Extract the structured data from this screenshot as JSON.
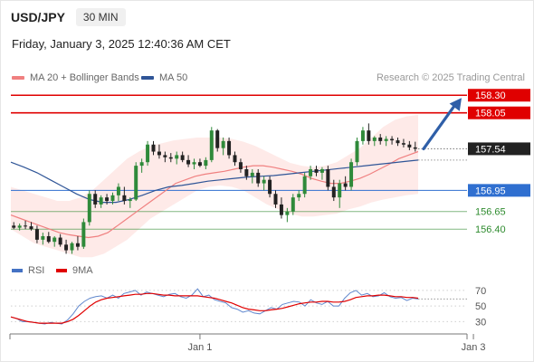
{
  "header": {
    "symbol": "USD/JPY",
    "timeframe": "30 MIN",
    "datetime": "Friday, January 3, 2025 12:40:36 AM CET"
  },
  "legend": {
    "ma20_label": "MA 20 + Bollinger Bands",
    "ma20_color": "#f08080",
    "ma50_label": "MA 50",
    "ma50_color": "#2f5597",
    "credit": "Research © 2025 Trading Central"
  },
  "rsi_legend": {
    "rsi_label": "RSI",
    "rsi_color": "#4472c4",
    "ma_label": "9MA",
    "ma_color": "#e00000"
  },
  "chart_data": [
    {
      "type": "candlestick",
      "ylim": [
        156.03,
        158.47
      ],
      "levels": [
        {
          "label": "158.30",
          "value": 158.3,
          "style": "resistance",
          "color": "#e00000"
        },
        {
          "label": "158.05",
          "value": 158.05,
          "style": "resistance",
          "color": "#e00000"
        },
        {
          "label": "157.54",
          "value": 157.54,
          "style": "last-price",
          "color": "#222222"
        },
        {
          "label": "156.95",
          "value": 156.95,
          "style": "pivot",
          "color": "#2f6fd0"
        },
        {
          "label": "156.65",
          "value": 156.65,
          "style": "support",
          "color": "#2e8b2e"
        },
        {
          "label": "156.40",
          "value": 156.4,
          "style": "support",
          "color": "#2e8b2e"
        }
      ],
      "candles": [
        [
          156.45,
          156.5,
          156.4,
          156.42
        ],
        [
          156.42,
          156.48,
          156.38,
          156.45
        ],
        [
          156.45,
          156.52,
          156.4,
          156.44
        ],
        [
          156.44,
          156.5,
          156.38,
          156.4
        ],
        [
          156.4,
          156.45,
          156.2,
          156.25
        ],
        [
          156.25,
          156.35,
          156.18,
          156.3
        ],
        [
          156.3,
          156.36,
          156.2,
          156.22
        ],
        [
          156.22,
          156.3,
          156.15,
          156.28
        ],
        [
          156.28,
          156.33,
          156.15,
          156.18
        ],
        [
          156.18,
          156.25,
          156.05,
          156.1
        ],
        [
          156.1,
          156.22,
          156.05,
          156.2
        ],
        [
          156.2,
          156.3,
          156.1,
          156.15
        ],
        [
          156.15,
          156.55,
          156.12,
          156.5
        ],
        [
          156.5,
          156.95,
          156.45,
          156.9
        ],
        [
          156.9,
          156.95,
          156.7,
          156.75
        ],
        [
          156.75,
          156.88,
          156.7,
          156.85
        ],
        [
          156.85,
          156.9,
          156.75,
          156.8
        ],
        [
          156.8,
          156.92,
          156.75,
          156.88
        ],
        [
          156.88,
          157.05,
          156.8,
          157.0
        ],
        [
          156.88,
          157.0,
          156.75,
          156.8
        ],
        [
          156.8,
          156.85,
          156.7,
          156.82
        ],
        [
          156.82,
          157.35,
          156.8,
          157.3
        ],
        [
          157.3,
          157.4,
          157.2,
          157.35
        ],
        [
          157.35,
          157.65,
          157.3,
          157.6
        ],
        [
          157.6,
          157.65,
          157.45,
          157.5
        ],
        [
          157.5,
          157.6,
          157.4,
          157.45
        ],
        [
          157.45,
          157.5,
          157.35,
          157.42
        ],
        [
          157.42,
          157.48,
          157.35,
          157.4
        ],
        [
          157.4,
          157.5,
          157.32,
          157.45
        ],
        [
          157.45,
          157.5,
          157.35,
          157.38
        ],
        [
          157.38,
          157.45,
          157.28,
          157.32
        ],
        [
          157.32,
          157.4,
          157.25,
          157.35
        ],
        [
          157.35,
          157.4,
          157.28,
          157.3
        ],
        [
          157.3,
          157.42,
          157.25,
          157.38
        ],
        [
          157.38,
          157.85,
          157.35,
          157.8
        ],
        [
          157.8,
          157.82,
          157.5,
          157.55
        ],
        [
          157.55,
          157.7,
          157.45,
          157.65
        ],
        [
          157.65,
          157.7,
          157.4,
          157.45
        ],
        [
          157.45,
          157.5,
          157.3,
          157.35
        ],
        [
          157.35,
          157.4,
          157.2,
          157.25
        ],
        [
          157.25,
          157.3,
          157.1,
          157.15
        ],
        [
          157.15,
          157.25,
          157.05,
          157.2
        ],
        [
          157.2,
          157.25,
          157.0,
          157.05
        ],
        [
          157.05,
          157.15,
          156.95,
          157.1
        ],
        [
          157.1,
          157.15,
          156.85,
          156.9
        ],
        [
          156.9,
          156.95,
          156.7,
          156.75
        ],
        [
          156.75,
          156.85,
          156.55,
          156.6
        ],
        [
          156.6,
          156.7,
          156.5,
          156.65
        ],
        [
          156.65,
          156.9,
          156.6,
          156.85
        ],
        [
          156.85,
          156.95,
          156.8,
          156.9
        ],
        [
          156.9,
          157.2,
          156.85,
          157.15
        ],
        [
          157.15,
          157.3,
          157.1,
          157.25
        ],
        [
          157.25,
          157.3,
          157.15,
          157.2
        ],
        [
          157.2,
          157.28,
          157.1,
          157.25
        ],
        [
          157.25,
          157.3,
          156.95,
          157.0
        ],
        [
          157.0,
          157.1,
          156.8,
          156.85
        ],
        [
          156.85,
          157.1,
          156.7,
          157.05
        ],
        [
          157.05,
          157.15,
          156.95,
          157.0
        ],
        [
          157.0,
          157.4,
          156.95,
          157.35
        ],
        [
          157.35,
          157.7,
          157.3,
          157.65
        ],
        [
          157.65,
          157.85,
          157.6,
          157.8
        ],
        [
          157.8,
          157.9,
          157.6,
          157.65
        ],
        [
          157.65,
          157.72,
          157.58,
          157.7
        ],
        [
          157.7,
          157.75,
          157.6,
          157.65
        ],
        [
          157.65,
          157.72,
          157.58,
          157.68
        ],
        [
          157.68,
          157.72,
          157.6,
          157.66
        ],
        [
          157.66,
          157.7,
          157.58,
          157.62
        ],
        [
          157.62,
          157.68,
          157.56,
          157.6
        ],
        [
          157.6,
          157.65,
          157.52,
          157.56
        ],
        [
          157.56,
          157.64,
          157.5,
          157.54
        ]
      ],
      "ma20": [
        156.6,
        156.55,
        156.5,
        156.45,
        156.4,
        156.35,
        156.32,
        156.3,
        156.28,
        156.3,
        156.35,
        156.45,
        156.55,
        156.65,
        156.75,
        156.85,
        156.95,
        157.05,
        157.1,
        157.15,
        157.18,
        157.2,
        157.22,
        157.25,
        157.28,
        157.3,
        157.3,
        157.28,
        157.25,
        157.22,
        157.18,
        157.12,
        157.08,
        157.05,
        157.05,
        157.08,
        157.12,
        157.18,
        157.25,
        157.32,
        157.4,
        157.45,
        157.5
      ],
      "ma50": [
        157.35,
        157.28,
        157.2,
        157.1,
        157.0,
        156.9,
        156.82,
        156.78,
        156.78,
        156.82,
        156.88,
        156.95,
        157.0,
        157.02,
        157.05,
        157.08,
        157.1,
        157.12,
        157.14,
        157.15,
        157.16,
        157.18,
        157.2,
        157.22,
        157.24,
        157.26,
        157.28,
        157.3,
        157.32,
        157.34,
        157.36,
        157.38
      ],
      "bb_upper": [
        157.0,
        156.95,
        156.9,
        156.85,
        156.8,
        156.8,
        156.85,
        156.95,
        157.1,
        157.25,
        157.4,
        157.5,
        157.58,
        157.62,
        157.66,
        157.68,
        157.7,
        157.7,
        157.7,
        157.68,
        157.64,
        157.58,
        157.5,
        157.42,
        157.34,
        157.3,
        157.28,
        157.3,
        157.35,
        157.45,
        157.55,
        157.7,
        157.85,
        157.95,
        158.0,
        158.02
      ],
      "bb_lower": [
        156.4,
        156.3,
        156.2,
        156.15,
        156.1,
        156.05,
        156.0,
        156.0,
        156.05,
        156.15,
        156.25,
        156.4,
        156.55,
        156.65,
        156.75,
        156.85,
        156.95,
        157.0,
        157.02,
        157.0,
        156.95,
        156.85,
        156.75,
        156.68,
        156.62,
        156.58,
        156.58,
        156.6,
        156.62,
        156.68,
        156.72,
        156.78,
        156.82,
        156.85,
        156.88,
        156.9
      ],
      "forecast_arrow": [
        [
          157.54,
          158.3
        ]
      ],
      "x_ticks": [
        {
          "label": "Jan 1",
          "index": 32
        },
        {
          "label": "Jan 3",
          "index": 79
        }
      ]
    },
    {
      "type": "line",
      "name": "RSI panel",
      "ylim": [
        20,
        78
      ],
      "y_ticks": [
        {
          "label": "70",
          "value": 70
        },
        {
          "label": "50",
          "value": 50
        },
        {
          "label": "30",
          "value": 30
        }
      ],
      "series": [
        {
          "name": "RSI",
          "values": [
            36,
            34,
            30,
            30,
            29,
            28,
            27,
            29,
            28,
            27,
            32,
            40,
            50,
            56,
            60,
            62,
            63,
            60,
            64,
            60,
            66,
            68,
            70,
            64,
            68,
            66,
            64,
            62,
            65,
            66,
            62,
            60,
            64,
            72,
            62,
            64,
            58,
            56,
            54,
            48,
            46,
            42,
            44,
            41,
            40,
            44,
            48,
            46,
            52,
            54,
            56,
            55,
            50,
            58,
            54,
            52,
            56,
            50,
            50,
            60,
            67,
            70,
            64,
            66,
            62,
            63,
            67,
            62,
            60,
            61,
            57,
            60,
            59
          ]
        },
        {
          "name": "9MA",
          "values": [
            36,
            34,
            32,
            30,
            29,
            28,
            28,
            28,
            28,
            28,
            30,
            33,
            38,
            44,
            50,
            55,
            58,
            60,
            61,
            62,
            63,
            64,
            65,
            65,
            66,
            66,
            65,
            64,
            64,
            63,
            63,
            63,
            63,
            63,
            62,
            61,
            60,
            58,
            56,
            54,
            51,
            48,
            46,
            45,
            44,
            44,
            45,
            46,
            47,
            49,
            51,
            53,
            54,
            55,
            55,
            56,
            56,
            55,
            55,
            56,
            58,
            61,
            62,
            63,
            63,
            64,
            64,
            63,
            62,
            62,
            61,
            61,
            60
          ]
        }
      ]
    }
  ]
}
